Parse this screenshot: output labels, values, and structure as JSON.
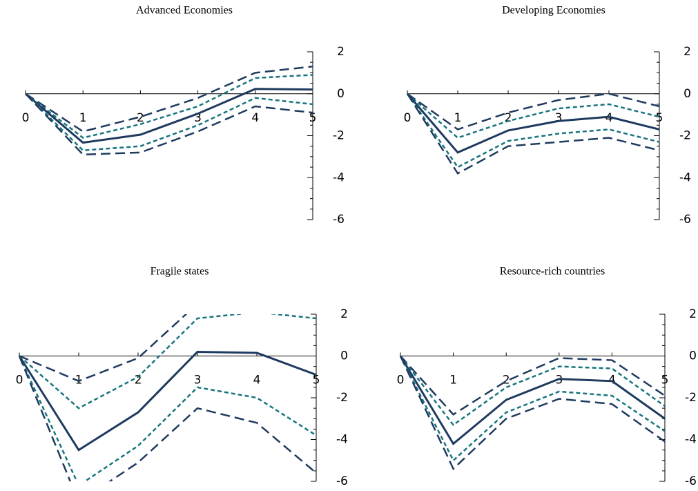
{
  "chart_data": [
    {
      "type": "line",
      "title": "Advanced Economies",
      "x": [
        0,
        1,
        2,
        3,
        4,
        5
      ],
      "xlim": [
        0,
        5
      ],
      "xticks": [
        0,
        1,
        2,
        3,
        4,
        5
      ],
      "ylim": [
        -6,
        2
      ],
      "yticks": [
        2,
        0,
        -2,
        -4,
        -6
      ],
      "yminorticks": [
        1.5,
        1,
        0.5,
        -0.5,
        -1,
        -1.5,
        -2.5,
        -3,
        -3.5,
        -4.5,
        -5,
        -5.5
      ],
      "series": [
        {
          "color": "#1f3a5f",
          "dash": "long",
          "values": [
            0,
            -1.8,
            -1.1,
            -0.2,
            1.0,
            1.3
          ]
        },
        {
          "color": "#17747e",
          "dash": "short",
          "values": [
            0,
            -2.1,
            -1.45,
            -0.6,
            0.75,
            0.9
          ]
        },
        {
          "color": "#1f3a5f",
          "dash": "solid",
          "values": [
            0,
            -2.33,
            -1.95,
            -0.95,
            0.23,
            0.2
          ]
        },
        {
          "color": "#17747e",
          "dash": "short",
          "values": [
            0,
            -2.7,
            -2.5,
            -1.5,
            -0.2,
            -0.5
          ]
        },
        {
          "color": "#1f3a5f",
          "dash": "long",
          "values": [
            0,
            -2.9,
            -2.8,
            -1.8,
            -0.6,
            -0.9
          ]
        }
      ]
    },
    {
      "type": "line",
      "title": "Developing Economies",
      "x": [
        0,
        1,
        2,
        3,
        4,
        5
      ],
      "xlim": [
        0,
        5
      ],
      "xticks": [
        0,
        1,
        2,
        3,
        4,
        5
      ],
      "ylim": [
        -6,
        2
      ],
      "yticks": [
        2,
        0,
        -2,
        -4,
        -6
      ],
      "yminorticks": [
        1.5,
        1,
        0.5,
        -0.5,
        -1,
        -1.5,
        -2.5,
        -3,
        -3.5,
        -4.5,
        -5,
        -5.5
      ],
      "series": [
        {
          "color": "#1f3a5f",
          "dash": "long",
          "values": [
            0,
            -1.7,
            -0.9,
            -0.3,
            0,
            -0.6
          ]
        },
        {
          "color": "#17747e",
          "dash": "short",
          "values": [
            0,
            -2.1,
            -1.3,
            -0.7,
            -0.5,
            -1.1
          ]
        },
        {
          "color": "#1f3a5f",
          "dash": "solid",
          "values": [
            0,
            -2.8,
            -1.75,
            -1.3,
            -1.1,
            -1.7
          ]
        },
        {
          "color": "#17747e",
          "dash": "short",
          "values": [
            0,
            -3.5,
            -2.25,
            -1.9,
            -1.7,
            -2.3
          ]
        },
        {
          "color": "#1f3a5f",
          "dash": "long",
          "values": [
            0,
            -3.8,
            -2.5,
            -2.3,
            -2.1,
            -2.7
          ]
        }
      ]
    },
    {
      "type": "line",
      "title": "Fragile states",
      "x": [
        0,
        1,
        2,
        3,
        4,
        5
      ],
      "xlim": [
        0,
        5
      ],
      "xticks": [
        0,
        1,
        2,
        3,
        4,
        5
      ],
      "ylim": [
        -6,
        2
      ],
      "yticks": [
        2,
        0,
        -2,
        -4,
        -6
      ],
      "yminorticks": [
        1.5,
        1,
        0.5,
        -0.5,
        -1,
        -1.5,
        -2.5,
        -3,
        -3.5,
        -4.5,
        -5,
        -5.5
      ],
      "series": [
        {
          "color": "#1f3a5f",
          "dash": "long",
          "values": [
            0,
            -1.2,
            -0.1,
            2.5,
            2.6,
            2.4
          ]
        },
        {
          "color": "#17747e",
          "dash": "short",
          "values": [
            0,
            -2.5,
            -1.0,
            1.8,
            2.1,
            1.8
          ]
        },
        {
          "color": "#1f3a5f",
          "dash": "solid",
          "values": [
            0,
            -4.5,
            -2.7,
            0.2,
            0.15,
            -0.9
          ]
        },
        {
          "color": "#17747e",
          "dash": "short",
          "values": [
            0,
            -6.2,
            -4.3,
            -1.5,
            -2.0,
            -3.8
          ]
        },
        {
          "color": "#1f3a5f",
          "dash": "long",
          "values": [
            0,
            -7.0,
            -5.1,
            -2.5,
            -3.2,
            -5.6
          ]
        }
      ]
    },
    {
      "type": "line",
      "title": "Resource-rich countries",
      "x": [
        0,
        1,
        2,
        3,
        4,
        5
      ],
      "xlim": [
        0,
        5
      ],
      "xticks": [
        0,
        1,
        2,
        3,
        4,
        5
      ],
      "ylim": [
        -6,
        2
      ],
      "yticks": [
        2,
        0,
        -2,
        -4,
        -6
      ],
      "yminorticks": [
        1.5,
        1,
        0.5,
        -0.5,
        -1,
        -1.5,
        -2.5,
        -3,
        -3.5,
        -4.5,
        -5,
        -5.5
      ],
      "series": [
        {
          "color": "#1f3a5f",
          "dash": "long",
          "values": [
            0,
            -2.8,
            -1.2,
            -0.1,
            -0.2,
            -1.9
          ]
        },
        {
          "color": "#17747e",
          "dash": "short",
          "values": [
            0,
            -3.3,
            -1.5,
            -0.5,
            -0.6,
            -2.4
          ]
        },
        {
          "color": "#1f3a5f",
          "dash": "solid",
          "values": [
            0,
            -4.2,
            -2.1,
            -1.1,
            -1.2,
            -3.0
          ]
        },
        {
          "color": "#17747e",
          "dash": "short",
          "values": [
            0,
            -5.0,
            -2.7,
            -1.7,
            -1.9,
            -3.6
          ]
        },
        {
          "color": "#1f3a5f",
          "dash": "long",
          "values": [
            0,
            -5.4,
            -3.0,
            -2.05,
            -2.3,
            -4.1
          ]
        }
      ]
    }
  ]
}
